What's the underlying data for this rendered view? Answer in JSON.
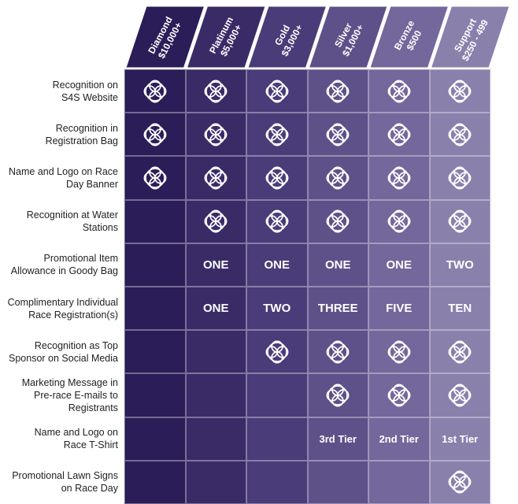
{
  "tiers": [
    {
      "name": "Diamond",
      "amount": "$10,000+",
      "color": "#2b1d57"
    },
    {
      "name": "Platinum",
      "amount": "$5,000+",
      "color": "#3a2b67"
    },
    {
      "name": "Gold",
      "amount": "$3,000+",
      "color": "#4a3c78"
    },
    {
      "name": "Silver",
      "amount": "$1,000+",
      "color": "#5e5189"
    },
    {
      "name": "Bronze",
      "amount": "$500",
      "color": "#73679b"
    },
    {
      "name": "Support",
      "amount": "$250 - 499",
      "color": "#8a80ac"
    }
  ],
  "benefits": [
    {
      "label_lines": [
        "Recognition on",
        "S4S Website"
      ],
      "cells": [
        "icon",
        "icon",
        "icon",
        "icon",
        "icon",
        "icon"
      ]
    },
    {
      "label_lines": [
        "Recognition in",
        "Registration Bag"
      ],
      "cells": [
        "icon",
        "icon",
        "icon",
        "icon",
        "icon",
        "icon"
      ]
    },
    {
      "label_lines": [
        "Name and Logo on Race",
        "Day Banner"
      ],
      "cells": [
        "icon",
        "icon",
        "icon",
        "icon",
        "icon",
        "icon"
      ]
    },
    {
      "label_lines": [
        "Recognition at Water",
        "Stations"
      ],
      "cells": [
        "",
        "icon",
        "icon",
        "icon",
        "icon",
        "icon"
      ]
    },
    {
      "label_lines": [
        "Promotional Item",
        "Allowance in Goody Bag"
      ],
      "cells": [
        "",
        "ONE",
        "ONE",
        "ONE",
        "ONE",
        "TWO"
      ]
    },
    {
      "label_lines": [
        "Complimentary Individual",
        "Race Registration(s)"
      ],
      "cells": [
        "",
        "ONE",
        "TWO",
        "THREE",
        "FIVE",
        "TEN"
      ]
    },
    {
      "label_lines": [
        "Recognition as Top",
        "Sponsor on Social Media"
      ],
      "cells": [
        "",
        "",
        "icon",
        "icon",
        "icon",
        "icon"
      ]
    },
    {
      "label_lines": [
        "Marketing Message in",
        "Pre-race E-mails to",
        "Registrants"
      ],
      "cells": [
        "",
        "",
        "",
        "icon",
        "icon",
        "icon"
      ]
    },
    {
      "label_lines": [
        "Name and Logo on",
        "Race T-Shirt"
      ],
      "cells": [
        "",
        "",
        "",
        "3rd Tier",
        "2nd Tier",
        "1st Tier"
      ]
    },
    {
      "label_lines": [
        "Promotional Lawn Signs",
        "on Race Day"
      ],
      "cells": [
        "",
        "",
        "",
        "",
        "",
        "icon"
      ]
    }
  ],
  "icon_name": "knot-emblem-icon"
}
